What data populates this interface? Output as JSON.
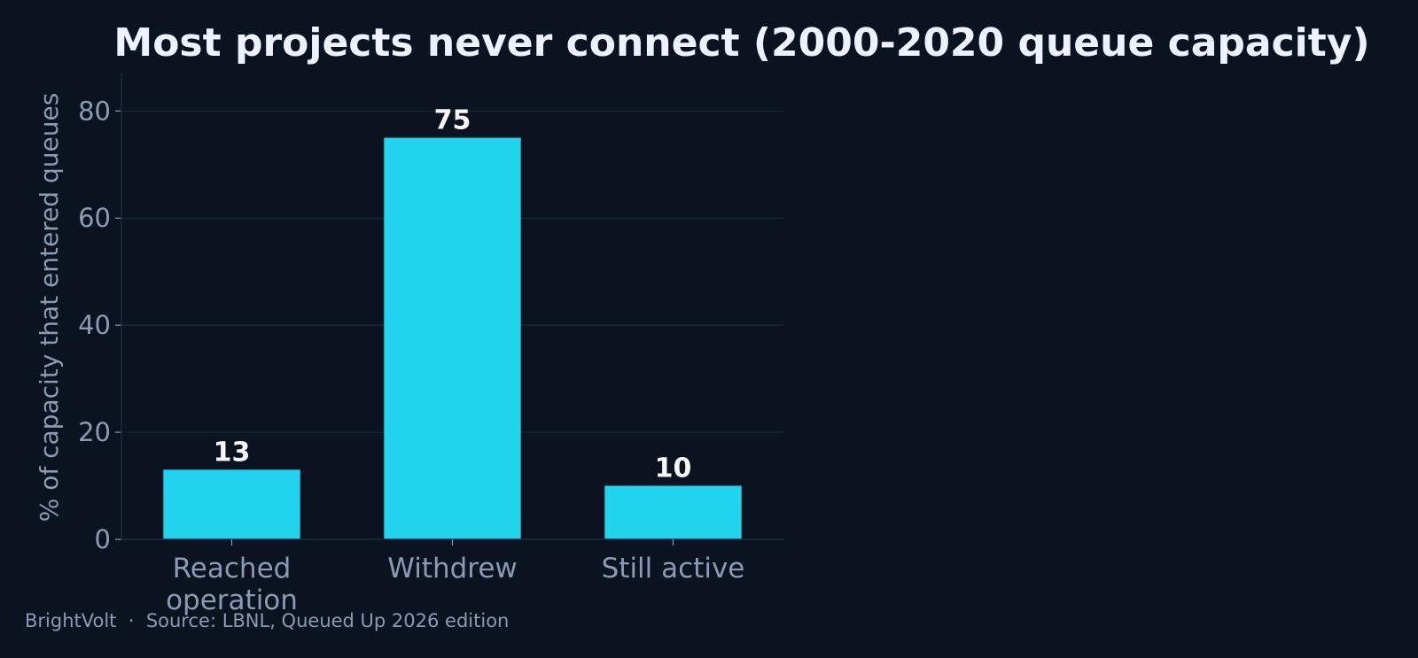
{
  "chart_data": {
    "type": "bar",
    "title": "Most projects never connect (2000-2020 queue capacity)",
    "xlabel": "",
    "ylabel": "% of capacity that entered queues",
    "categories": [
      [
        "Reached",
        "operation"
      ],
      [
        "Withdrew"
      ],
      [
        "Still active"
      ]
    ],
    "values": [
      13,
      75,
      10
    ],
    "data_labels": [
      "13",
      "75",
      "10"
    ],
    "ylim": [
      0,
      87
    ],
    "yticks": [
      0,
      20,
      40,
      60,
      80
    ],
    "grid": "horizontal",
    "legend": "none"
  },
  "colors": {
    "background": "#0b1220",
    "bar": "#22d3ee",
    "title": "#eef3ff",
    "label": "#8c9ab3",
    "grid": "#1e2a3d",
    "data_label": "#f5f7fb"
  },
  "footer": {
    "brand": "BrightVolt",
    "separator": "·",
    "source": "Source: LBNL, Queued Up 2026 edition"
  }
}
